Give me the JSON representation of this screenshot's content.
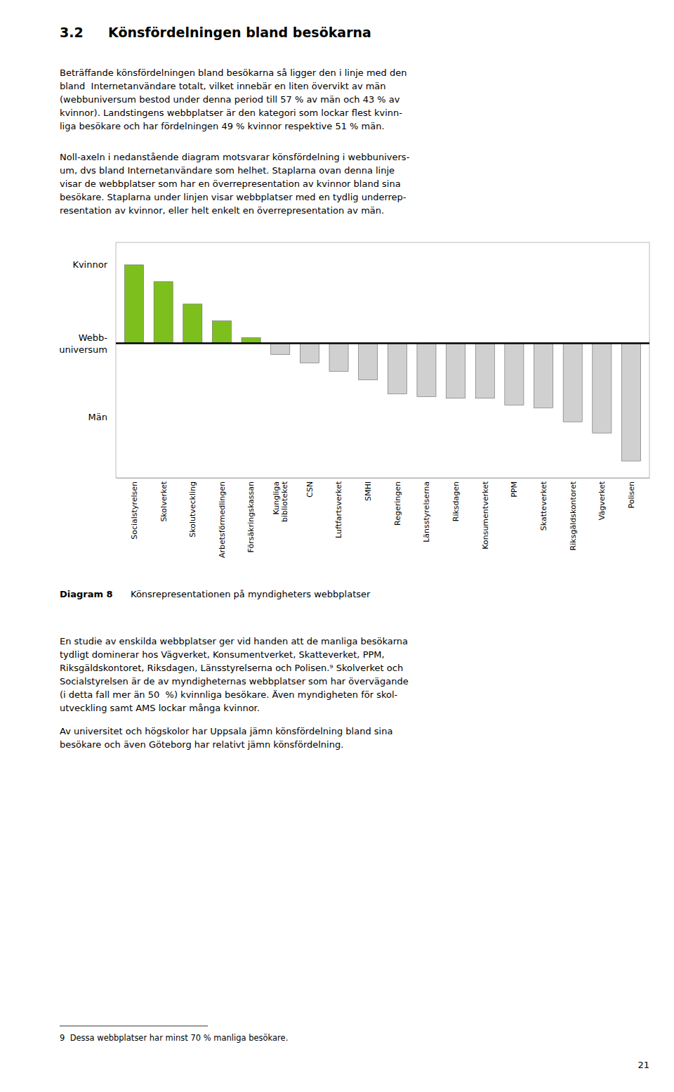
{
  "section_number": "3.2",
  "section_title": "Könsfördelningen bland besökarna",
  "paragraphs_before": [
    [
      "Beträffande könsfördelningen bland besökarna så ligger den i linje med den",
      "bland  Internetanvändare totalt, vilket innebär en liten övervikt av män",
      "(webbuniversum bestod under denna period till 57 % av män och 43 % av",
      "kvinnor). Landstingens webbplatser är den kategori som lockar flest kvinn-",
      "liga besökare och har fördelningen 49 % kvinnor respektive 51 % män."
    ],
    [
      "Noll-axeln i nedanstående diagram motsvarar könsfördelning i webbunivers-",
      "um, dvs bland Internetanvändare som helhet. Staplarna ovan denna linje",
      "visar de webbplatser som har en överrepresentation av kvinnor bland sina",
      "besökare. Staplarna under linjen visar webbplatser med en tydlig underrep-",
      "resentation av kvinnor, eller helt enkelt en överrepresentation av män."
    ]
  ],
  "chart_data": {
    "type": "bar",
    "title": "Diagram 8",
    "subtitle": "Könsrepresentationen på myndigheters webbplatser",
    "categories": [
      "Socialstyrelsen",
      "Skolverket",
      "Skolutveckling",
      "Arbetsförmedlingen",
      "Försäkringskassan",
      "Kungliga\nbiblioteket",
      "CSN",
      "Luftfartsverket",
      "SMHI",
      "Regeringen",
      "Länsstyrelserna",
      "Riksdagen",
      "Konsumentverket",
      "PPM",
      "Skatteverket",
      "Riksgäldskontoret",
      "Vägverket",
      "Polisen"
    ],
    "values": [
      14,
      11,
      7,
      4,
      1,
      -2,
      -3.5,
      -5,
      -6.5,
      -9,
      -9.5,
      -9.8,
      -9.8,
      -11,
      -11.5,
      -14,
      -16,
      -21
    ],
    "colors": [
      "#7dc01e",
      "#7dc01e",
      "#7dc01e",
      "#7dc01e",
      "#7dc01e",
      "#d0d0d0",
      "#d0d0d0",
      "#d0d0d0",
      "#d0d0d0",
      "#d0d0d0",
      "#d0d0d0",
      "#d0d0d0",
      "#d0d0d0",
      "#d0d0d0",
      "#d0d0d0",
      "#d0d0d0",
      "#d0d0d0",
      "#d0d0d0"
    ],
    "ylim": [
      -24,
      18
    ],
    "grid": false,
    "tick_labels": "x",
    "annotations": [
      "Kvinnor",
      "Webb-\nuniversum",
      "Män"
    ]
  },
  "paragraphs_after": [
    [
      "En studie av enskilda webbplatser ger vid handen att de manliga besökarna",
      "tydligt dominerar hos Vägverket, Konsumentverket, Skatteverket, PPM,",
      "Riksgäldskontoret, Riksdagen, Länsstyrelserna och Polisen.⁹ Skolverket och",
      "Socialstyrelsen är de av myndigheternas webbplatser som har övervägande",
      "(i detta fall mer än 50  %) kvinnliga besökare. Även myndigheten för skol-",
      "utveckling samt AMS lockar många kvinnor."
    ],
    [
      "Av universitet och högskolor har Uppsala jämn könsfördelning bland sina",
      "besökare och även Göteborg har relativt jämn könsfördelning."
    ]
  ],
  "footnote": "9  Dessa webbplatser har minst 70 % manliga besökare.",
  "page_number": "21"
}
